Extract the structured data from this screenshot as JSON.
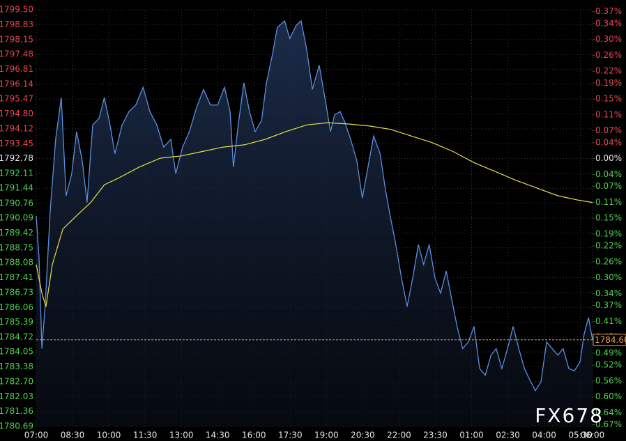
{
  "chart_data": {
    "type": "line",
    "watermark": "FX678",
    "grid": true,
    "background": "#000000",
    "up_color": "#e8474c",
    "down_color": "#4fd24f",
    "flat_color": "#e6e6e6",
    "xlim": [
      0,
      1380
    ],
    "xticks": [
      {
        "value": 0,
        "label": "07:00"
      },
      {
        "value": 90,
        "label": "08:30"
      },
      {
        "value": 180,
        "label": "10:00"
      },
      {
        "value": 270,
        "label": "11:30"
      },
      {
        "value": 360,
        "label": "13:00"
      },
      {
        "value": 450,
        "label": "14:30"
      },
      {
        "value": 540,
        "label": "16:00"
      },
      {
        "value": 630,
        "label": "17:30"
      },
      {
        "value": 720,
        "label": "19:00"
      },
      {
        "value": 810,
        "label": "20:30"
      },
      {
        "value": 900,
        "label": "22:00"
      },
      {
        "value": 990,
        "label": "23:30"
      },
      {
        "value": 1080,
        "label": "01:00"
      },
      {
        "value": 1170,
        "label": "02:30"
      },
      {
        "value": 1260,
        "label": "04:00"
      },
      {
        "value": 1350,
        "label": "05:30"
      }
    ],
    "end_tick": {
      "value": 1380,
      "label": "06:00"
    },
    "ylim": [
      1780.69,
      1799.5
    ],
    "yticks": [
      {
        "value": 1799.5,
        "label": "1799.50"
      },
      1798.83,
      1798.15,
      1797.48,
      1796.81,
      1796.14,
      1795.47,
      {
        "value": 1794.8,
        "label": "1794.80"
      },
      1794.12,
      1793.45,
      1792.78,
      1792.11,
      1791.44,
      1790.76,
      1790.09,
      1789.42,
      1788.75,
      1788.08,
      1787.41,
      1786.73,
      1786.06,
      1785.39,
      1784.72,
      1784.05,
      1783.38,
      {
        "value": 1782.7,
        "label": "1782.70"
      },
      1782.03,
      1781.36,
      1780.69
    ],
    "y2lim": [
      -0.6744,
      0.3748
    ],
    "y2ticks": [
      {
        "value": 0.37,
        "label": "0.37%"
      },
      {
        "value": 0.34,
        "label": "0.34%"
      },
      {
        "value": 0.3,
        "label": "0.30%"
      },
      {
        "value": 0.26,
        "label": "0.26%"
      },
      {
        "value": 0.22,
        "label": "0.22%"
      },
      {
        "value": 0.19,
        "label": "0.19%"
      },
      {
        "value": 0.15,
        "label": "0.15%"
      },
      {
        "value": 0.11,
        "label": "0.11%"
      },
      {
        "value": 0.07,
        "label": "0.07%"
      },
      {
        "value": 0.04,
        "label": "0.04%"
      },
      {
        "value": 0,
        "label": "0.00%"
      },
      {
        "value": -0.04,
        "label": "0.04%"
      },
      {
        "value": -0.07,
        "label": "0.07%"
      },
      {
        "value": -0.11,
        "label": "0.11%"
      },
      {
        "value": -0.15,
        "label": "0.15%"
      },
      {
        "value": -0.19,
        "label": "0.19%"
      },
      {
        "value": -0.22,
        "label": "0.22%"
      },
      {
        "value": -0.26,
        "label": "0.26%"
      },
      {
        "value": -0.3,
        "label": "0.30%"
      },
      {
        "value": -0.34,
        "label": "0.34%"
      },
      {
        "value": -0.37,
        "label": "0.37%"
      },
      {
        "value": -0.41,
        "label": "0.41%"
      },
      {
        "value": -0.45,
        "label": "0.45%"
      },
      {
        "value": -0.49,
        "label": "0.49%"
      },
      {
        "value": -0.52,
        "label": "0.52%"
      },
      {
        "value": -0.56,
        "label": "0.56%"
      },
      {
        "value": -0.6,
        "label": "0.60%"
      },
      {
        "value": -0.64,
        "label": "0.64%"
      },
      {
        "value": -0.67,
        "label": "0.67%"
      }
    ],
    "last_price": {
      "value": 1784.6,
      "label": "1784.60",
      "color": "#f0a050"
    },
    "series": [
      {
        "color": "#5b8fe0",
        "x": [
          0,
          7,
          14,
          22,
          35,
          48,
          62,
          74,
          88,
          100,
          114,
          126,
          140,
          156,
          169,
          183,
          195,
          213,
          230,
          247,
          265,
          282,
          299,
          316,
          334,
          346,
          363,
          380,
          398,
          415,
          432,
          450,
          467,
          481,
          489,
          501,
          515,
          529,
          543,
          559,
          571,
          585,
          598,
          616,
          629,
          645,
          657,
          671,
          685,
          702,
          716,
          730,
          740,
          754,
          766,
          780,
          795,
          809,
          823,
          837,
          853,
          866,
          878,
          892,
          906,
          920,
          934,
          948,
          961,
          975,
          989,
          1003,
          1017,
          1031,
          1044,
          1058,
          1072,
          1086,
          1100,
          1114,
          1128,
          1141,
          1155,
          1169,
          1183,
          1197,
          1211,
          1224,
          1238,
          1252,
          1266,
          1280,
          1294,
          1307,
          1321,
          1335,
          1349,
          1359,
          1370,
          1380
        ],
        "values": [
          1790.19,
          1788.3,
          1784.2,
          1786.1,
          1790.5,
          1793.65,
          1795.54,
          1791.1,
          1792.1,
          1794.0,
          1792.7,
          1790.8,
          1794.3,
          1794.6,
          1795.54,
          1794.3,
          1793.0,
          1794.3,
          1794.9,
          1795.2,
          1796.0,
          1794.9,
          1794.3,
          1793.3,
          1793.65,
          1792.1,
          1793.3,
          1794.0,
          1795.1,
          1795.9,
          1795.2,
          1795.2,
          1796.0,
          1794.9,
          1792.4,
          1794.3,
          1796.2,
          1794.9,
          1794.0,
          1794.5,
          1796.2,
          1797.4,
          1798.7,
          1799.0,
          1798.2,
          1798.8,
          1799.0,
          1797.7,
          1795.9,
          1797.0,
          1795.54,
          1794.0,
          1794.75,
          1794.9,
          1794.4,
          1793.65,
          1792.7,
          1791.0,
          1792.4,
          1793.8,
          1793.0,
          1791.4,
          1790.2,
          1788.9,
          1787.4,
          1786.1,
          1787.4,
          1788.9,
          1788.0,
          1788.9,
          1787.4,
          1786.7,
          1787.7,
          1786.4,
          1785.2,
          1784.2,
          1784.5,
          1785.2,
          1783.3,
          1783.0,
          1783.9,
          1784.2,
          1783.3,
          1784.2,
          1785.2,
          1784.2,
          1783.3,
          1782.8,
          1782.3,
          1782.7,
          1784.5,
          1784.2,
          1783.9,
          1784.2,
          1783.3,
          1783.2,
          1783.6,
          1784.85,
          1785.6,
          1784.6
        ]
      },
      {
        "color": "#e6e04a",
        "x": [
          0,
          14,
          24,
          40,
          66,
          100,
          135,
          169,
          204,
          256,
          308,
          360,
          412,
          464,
          516,
          568,
          619,
          671,
          723,
          775,
          827,
          879,
          930,
          982,
          1034,
          1086,
          1138,
          1190,
          1242,
          1294,
          1346,
          1380
        ],
        "values": [
          1788.0,
          1786.7,
          1786.1,
          1788.0,
          1789.6,
          1790.2,
          1790.8,
          1791.6,
          1791.9,
          1792.4,
          1792.8,
          1792.9,
          1793.1,
          1793.3,
          1793.4,
          1793.65,
          1794.0,
          1794.3,
          1794.4,
          1794.34,
          1794.25,
          1794.1,
          1793.8,
          1793.5,
          1793.1,
          1792.6,
          1792.2,
          1791.8,
          1791.45,
          1791.1,
          1790.9,
          1790.8
        ]
      }
    ]
  }
}
